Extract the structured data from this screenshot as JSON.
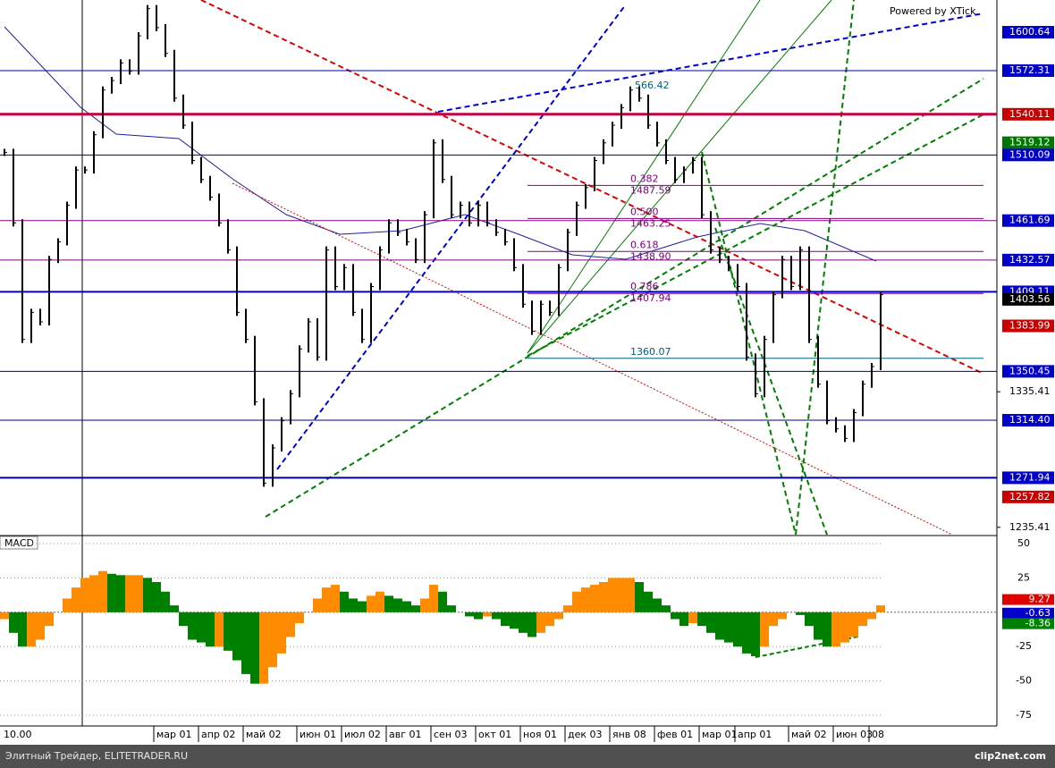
{
  "chart_data": {
    "type": "bar",
    "watermark": "Powered by XTick",
    "indicator_title": "MACD",
    "footer_text": "Элитный Трейдер, ELITETRADER.RU",
    "footer_logo": "clip2net.com",
    "start_label": "10.00",
    "fib_top_label": "566.42",
    "ylim": [
      1230,
      1624.4
    ],
    "yticks": [
      {
        "value": 1335.41,
        "label": "1335.41"
      },
      {
        "value": 1235.41,
        "label": "1235.41"
      }
    ],
    "price_levels": [
      {
        "value": 1600.64,
        "label": "1600.64",
        "badge": "#0000c8"
      },
      {
        "value": 1572.31,
        "label": "1572.31",
        "badge": "#0000c8",
        "line": "#0000a0",
        "width": 1
      },
      {
        "value": 1540.11,
        "label": "1540.11",
        "badge": "#c80000",
        "line": "#c00040",
        "width": 3
      },
      {
        "value": 1519.12,
        "label": "1519.12",
        "badge": "#007800"
      },
      {
        "value": 1510.09,
        "label": "1510.09",
        "badge": "#0000c8",
        "line": "#000080",
        "width": 1
      },
      {
        "value": 1461.69,
        "label": "1461.69",
        "badge": "#0000c8",
        "line": "#800080",
        "width": 1
      },
      {
        "value": 1432.57,
        "label": "1432.57",
        "badge": "#0000c8",
        "line": "#800080",
        "width": 1
      },
      {
        "value": 1409.11,
        "label": "1409.11",
        "badge": "#0000c8",
        "line": "#0000c8",
        "width": 2
      },
      {
        "value": 1403.56,
        "label": "1403.56",
        "badge": "#000000"
      },
      {
        "value": 1383.99,
        "label": "1383.99",
        "badge": "#c80000"
      },
      {
        "value": 1350.45,
        "label": "1350.45",
        "badge": "#0000c8",
        "line": "#000080",
        "width": 1
      },
      {
        "value": 1314.4,
        "label": "1314.40",
        "badge": "#0000c8",
        "line": "#000080",
        "width": 1
      },
      {
        "value": 1271.94,
        "label": "1271.94",
        "badge": "#0000c8",
        "line": "#0000a0",
        "width": 2
      },
      {
        "value": 1257.82,
        "label": "1257.82",
        "badge": "#c80000"
      }
    ],
    "fib_levels": [
      {
        "ratio": "0.382",
        "price": {
          "value": 1487.59,
          "label": "1487.59"
        }
      },
      {
        "ratio": "0.500",
        "price": {
          "value": 1463.25,
          "label": "1463.25"
        }
      },
      {
        "ratio": "0.618",
        "price": {
          "value": 1438.9,
          "label": "1438.90"
        }
      },
      {
        "ratio": "0.786",
        "price": {
          "value": 1407.94,
          "label": "1407.94"
        }
      },
      {
        "price": {
          "value": 1360.07,
          "label": "1360.07"
        }
      }
    ],
    "xticks": [
      {
        "value": 17,
        "label": "мар 01"
      },
      {
        "value": 22,
        "label": "апр 02"
      },
      {
        "value": 27,
        "label": "май 02"
      },
      {
        "value": 33,
        "label": "июн 01"
      },
      {
        "value": 38,
        "label": "июл 02"
      },
      {
        "value": 43,
        "label": "авг 01"
      },
      {
        "value": 48,
        "label": "сен 03"
      },
      {
        "value": 53,
        "label": "окт 01"
      },
      {
        "value": 58,
        "label": "ноя 01"
      },
      {
        "value": 63,
        "label": "дек 03"
      },
      {
        "value": 68,
        "label": "янв 08"
      },
      {
        "value": 73,
        "label": "фев 01"
      },
      {
        "value": 78,
        "label": "мар 01"
      },
      {
        "value": 82,
        "label": "апр 01"
      },
      {
        "value": 88,
        "label": "май 02"
      },
      {
        "value": 93,
        "label": "июн 03"
      },
      {
        "value": 97,
        "label": "08"
      }
    ],
    "price_color": "#000000",
    "price": [
      1512,
      1460,
      1374,
      1394,
      1387,
      1433,
      1446,
      1473,
      1499,
      1499,
      1525,
      1558,
      1565,
      1578,
      1572,
      1598,
      1618,
      1604,
      1585,
      1552,
      1532,
      1506,
      1492,
      1479,
      1460,
      1440,
      1394,
      1374,
      1328,
      1268,
      1294,
      1314,
      1334,
      1367,
      1387,
      1361,
      1440,
      1413,
      1427,
      1394,
      1374,
      1413,
      1440,
      1460,
      1453,
      1446,
      1433,
      1466,
      1519,
      1492,
      1466,
      1473,
      1460,
      1473,
      1460,
      1453,
      1446,
      1427,
      1400,
      1380,
      1400,
      1394,
      1427,
      1453,
      1473,
      1486,
      1506,
      1519,
      1532,
      1545,
      1558,
      1552,
      1532,
      1519,
      1506,
      1492,
      1499,
      1506,
      1466,
      1440,
      1433,
      1427,
      1413,
      1361,
      1334,
      1374,
      1407,
      1433,
      1413,
      1440,
      1374,
      1341,
      1314,
      1308,
      1301,
      1320,
      1341,
      1354,
      1407
    ],
    "macd_ylim": [
      -81.5,
      55.2
    ],
    "macd_yticks": [
      50,
      25,
      -25,
      -50,
      -75
    ],
    "macd_rising_color": "#ff8c00",
    "macd_falling_color": "#008000",
    "macd": [
      -5,
      -15,
      -25,
      -25,
      -20,
      -10,
      0,
      10,
      18,
      25,
      27,
      30,
      28,
      27,
      27,
      27,
      25,
      22,
      15,
      5,
      -10,
      -20,
      -22,
      -25,
      -25,
      -28,
      -35,
      -45,
      -52,
      -52,
      -40,
      -30,
      -18,
      -8,
      0,
      10,
      18,
      20,
      15,
      10,
      8,
      12,
      15,
      12,
      10,
      8,
      5,
      10,
      20,
      15,
      5,
      0,
      -3,
      -5,
      -3,
      -5,
      -10,
      -12,
      -15,
      -18,
      -15,
      -10,
      -5,
      5,
      15,
      18,
      20,
      22,
      25,
      25,
      25,
      22,
      15,
      10,
      5,
      -5,
      -10,
      -8,
      -10,
      -15,
      -20,
      -22,
      -25,
      -30,
      -32,
      -25,
      -10,
      -5,
      0,
      -2,
      -10,
      -20,
      -25,
      -25,
      -22,
      -18,
      -10,
      -5,
      5
    ],
    "macd_readouts": [
      {
        "value": 9.27,
        "badge": "#e00000"
      },
      {
        "value": -0.63,
        "badge": "#0000c8"
      },
      {
        "value": -8.36,
        "badge": "#008000"
      }
    ]
  }
}
